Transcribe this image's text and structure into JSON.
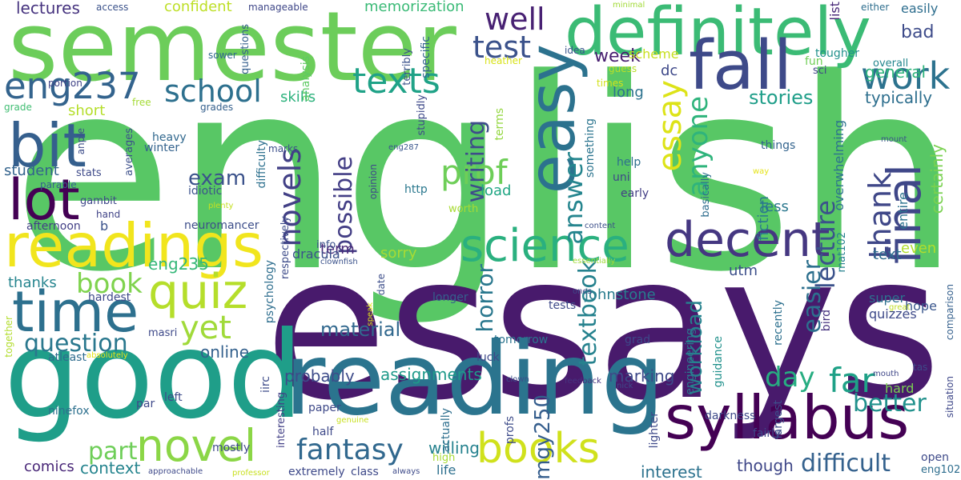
{
  "words": [
    {
      "text": "english",
      "color": "#58c765",
      "rot": false
    },
    {
      "text": "essays",
      "color": "#481a6c",
      "rot": false
    },
    {
      "text": "good",
      "color": "#1f9e89",
      "rot": false
    },
    {
      "text": "semester",
      "color": "#6ccd5a",
      "rot": false
    },
    {
      "text": "reading",
      "color": "#2b748e",
      "rot": false
    },
    {
      "text": "definitely",
      "color": "#3bbb75",
      "rot": false
    },
    {
      "text": "readings",
      "color": "#f1e51d",
      "rot": false
    },
    {
      "text": "syllabus",
      "color": "#440154",
      "rot": false
    },
    {
      "text": "easy",
      "color": "#2c728e",
      "rot": true
    },
    {
      "text": "fall",
      "color": "#3e4a89",
      "rot": false
    },
    {
      "text": "science",
      "color": "#2ab07f",
      "rot": false
    },
    {
      "text": "final",
      "color": "#3f4788",
      "rot": true
    },
    {
      "text": "decent",
      "color": "#453781",
      "rot": false
    },
    {
      "text": "novel",
      "color": "#8bd646",
      "rot": false
    },
    {
      "text": "time",
      "color": "#2d708e",
      "rot": false
    },
    {
      "text": "bit",
      "color": "#355f8d",
      "rot": false
    },
    {
      "text": "quiz",
      "color": "#b5de2b",
      "rot": false
    },
    {
      "text": "lot",
      "color": "#440154",
      "rot": false
    },
    {
      "text": "eng237",
      "color": "#33638d",
      "rot": false
    },
    {
      "text": "books",
      "color": "#d0e11c",
      "rot": false
    },
    {
      "text": "texts",
      "color": "#1fa287",
      "rot": false
    },
    {
      "text": "school",
      "color": "#2d708e",
      "rot": false
    },
    {
      "text": "work",
      "color": "#2c728e",
      "rot": false
    },
    {
      "text": "well",
      "color": "#482173",
      "rot": false
    },
    {
      "text": "test",
      "color": "#3b528b",
      "rot": false
    },
    {
      "text": "yet",
      "color": "#a0da39",
      "rot": false
    },
    {
      "text": "far",
      "color": "#1fa187",
      "rot": false
    },
    {
      "text": "prof",
      "color": "#6ece58",
      "rot": false
    },
    {
      "text": "essay",
      "color": "#dde318",
      "rot": true
    },
    {
      "text": "answer",
      "color": "#25858e",
      "rot": true
    },
    {
      "text": "thank",
      "color": "#3f4788",
      "rot": true
    },
    {
      "text": "fantasy",
      "color": "#31688e",
      "rot": false
    },
    {
      "text": "novels",
      "color": "#424086",
      "rot": true
    },
    {
      "text": "book",
      "color": "#7fd34e",
      "rot": false
    },
    {
      "text": "day",
      "color": "#27ad81",
      "rot": false
    },
    {
      "text": "anyone",
      "color": "#2fb47c",
      "rot": true
    },
    {
      "text": "difficult",
      "color": "#34618d",
      "rot": false
    },
    {
      "text": "better",
      "color": "#21918c",
      "rot": false
    },
    {
      "text": "question",
      "color": "#2a788e",
      "rot": false
    },
    {
      "text": "lecture",
      "color": "#3b528b",
      "rot": true
    },
    {
      "text": "writing",
      "color": "#3e4c8a",
      "rot": true
    },
    {
      "text": "mgy250",
      "color": "#355e8d",
      "rot": true
    },
    {
      "text": "easier",
      "color": "#2d708e",
      "rot": true
    },
    {
      "text": "textbook",
      "color": "#26828e",
      "rot": true
    },
    {
      "text": "possible",
      "color": "#433e85",
      "rot": true
    },
    {
      "text": "part",
      "color": "#6ece58",
      "rot": false
    },
    {
      "text": "exam",
      "color": "#3b528b",
      "rot": false
    },
    {
      "text": "material",
      "color": "#31688e",
      "rot": false
    },
    {
      "text": "stories",
      "color": "#1f9e89",
      "rot": false
    },
    {
      "text": "horror",
      "color": "#2a788e",
      "rot": true
    },
    {
      "text": "workload",
      "color": "#26828e",
      "rot": true
    },
    {
      "text": "week",
      "color": "#481f70",
      "rot": false
    },
    {
      "text": "bad",
      "color": "#3e4c8a",
      "rot": false
    },
    {
      "text": "general",
      "color": "#2fb47c",
      "rot": false
    },
    {
      "text": "typically",
      "color": "#2e6f8e",
      "rot": false
    },
    {
      "text": "lectures",
      "color": "#46337f",
      "rot": false
    },
    {
      "text": "confident",
      "color": "#bddf26",
      "rot": false
    },
    {
      "text": "memorization",
      "color": "#3aba76",
      "rot": false
    },
    {
      "text": "online",
      "color": "#34618d",
      "rot": false
    },
    {
      "text": "probably",
      "color": "#3e4c8a",
      "rot": false
    },
    {
      "text": "assignments",
      "color": "#1f9a8a",
      "rot": false
    },
    {
      "text": "marking",
      "color": "#3e4989",
      "rot": false
    },
    {
      "text": "interest",
      "color": "#2c728e",
      "rot": false
    },
    {
      "text": "though",
      "color": "#3f4788",
      "rot": false
    },
    {
      "text": "willing",
      "color": "#26828e",
      "rot": false
    },
    {
      "text": "context",
      "color": "#25848e",
      "rot": false
    },
    {
      "text": "comics",
      "color": "#482677",
      "rot": false
    },
    {
      "text": "eng235",
      "color": "#35b779",
      "rot": false
    },
    {
      "text": "thanks",
      "color": "#25848e",
      "rot": false
    },
    {
      "text": "skills",
      "color": "#2db27d",
      "rot": false
    },
    {
      "text": "short",
      "color": "#b5de2b",
      "rot": false
    },
    {
      "text": "student",
      "color": "#33638d",
      "rot": false
    },
    {
      "text": "term",
      "color": "#482878",
      "rot": false
    },
    {
      "text": "sorry",
      "color": "#a8db34",
      "rot": false
    },
    {
      "text": "load",
      "color": "#22a785",
      "rot": false
    },
    {
      "text": "long",
      "color": "#2c728e",
      "rot": false
    },
    {
      "text": "dc",
      "color": "#3e4989",
      "rot": false
    },
    {
      "text": "scheme",
      "color": "#c8e020",
      "rot": false
    },
    {
      "text": "fiction",
      "color": "#2a788e",
      "rot": true
    },
    {
      "text": "less",
      "color": "#2a778e",
      "rot": false
    },
    {
      "text": "even",
      "color": "#b2dd2d",
      "rot": false
    },
    {
      "text": "text",
      "color": "#2f6c8e",
      "rot": false
    },
    {
      "text": "utm",
      "color": "#3c4f8a",
      "rot": false
    },
    {
      "text": "johnstone",
      "color": "#287c8e",
      "rot": false
    },
    {
      "text": "dracula",
      "color": "#3b528b",
      "rot": false
    },
    {
      "text": "super",
      "color": "#2d708e",
      "rot": false
    },
    {
      "text": "quizzes",
      "color": "#3e4a89",
      "rot": false
    },
    {
      "text": "hope",
      "color": "#39568c",
      "rot": false
    },
    {
      "text": "hard",
      "color": "#7ad151",
      "rot": false
    },
    {
      "text": "certainly",
      "color": "#7ad151",
      "rot": true
    },
    {
      "text": "entire",
      "color": "#2c728e",
      "rot": true
    },
    {
      "text": "overwhelming",
      "color": "#2c738e",
      "rot": true
    },
    {
      "text": "access",
      "color": "#3b528b",
      "rot": false
    },
    {
      "text": "manageable",
      "color": "#3f4788",
      "rot": false
    },
    {
      "text": "either",
      "color": "#2e6e8e",
      "rot": false
    },
    {
      "text": "easily",
      "color": "#2e6e8e",
      "rot": false
    },
    {
      "text": "list",
      "color": "#482878",
      "rot": true
    },
    {
      "text": "minimal",
      "color": "#a2da37",
      "rot": false
    },
    {
      "text": "questions",
      "color": "#355f8d",
      "rot": true
    },
    {
      "text": "sower",
      "color": "#31688e",
      "rot": false
    },
    {
      "text": "portion",
      "color": "#414487",
      "rot": false
    },
    {
      "text": "analysis",
      "color": "#5ec962",
      "rot": true
    },
    {
      "text": "terribly",
      "color": "#3b528b",
      "rot": true
    },
    {
      "text": "specific",
      "color": "#33638d",
      "rot": true
    },
    {
      "text": "heather",
      "color": "#d8e219",
      "rot": false
    },
    {
      "text": "idea",
      "color": "#39558c",
      "rot": false
    },
    {
      "text": "guess",
      "color": "#bade28",
      "rot": false
    },
    {
      "text": "times",
      "color": "#d2e21b",
      "rot": false
    },
    {
      "text": "fun",
      "color": "#70cf57",
      "rot": false
    },
    {
      "text": "tougher",
      "color": "#21918c",
      "rot": false
    },
    {
      "text": "overall",
      "color": "#24878e",
      "rot": false
    },
    {
      "text": "sci",
      "color": "#414487",
      "rot": false
    },
    {
      "text": "grade",
      "color": "#40bd72",
      "rot": false
    },
    {
      "text": "free",
      "color": "#a5db36",
      "rot": false
    },
    {
      "text": "grades",
      "color": "#35608d",
      "rot": false
    },
    {
      "text": "stupidly",
      "color": "#3e4989",
      "rot": true
    },
    {
      "text": "terms",
      "color": "#94d741",
      "rot": true
    },
    {
      "text": "something",
      "color": "#2b748e",
      "rot": true
    },
    {
      "text": "things",
      "color": "#33638d",
      "rot": false
    },
    {
      "text": "mount",
      "color": "#3b528b",
      "rot": false
    },
    {
      "text": "averages",
      "color": "#3c4f8a",
      "rot": true
    },
    {
      "text": "heavy",
      "color": "#31688e",
      "rot": false
    },
    {
      "text": "winter",
      "color": "#33628d",
      "rot": false
    },
    {
      "text": "marks",
      "color": "#3c4f8a",
      "rot": false
    },
    {
      "text": "eng287",
      "color": "#39568c",
      "rot": false
    },
    {
      "text": "help",
      "color": "#2e6f8e",
      "rot": false
    },
    {
      "text": "uni",
      "color": "#3f4788",
      "rot": false
    },
    {
      "text": "early",
      "color": "#433e85",
      "rot": false
    },
    {
      "text": "way",
      "color": "#e5e419",
      "rot": false
    },
    {
      "text": "stats",
      "color": "#3e4a89",
      "rot": false
    },
    {
      "text": "anple",
      "color": "#3d4d8a",
      "rot": true
    },
    {
      "text": "parable",
      "color": "#35608d",
      "rot": false
    },
    {
      "text": "gambit",
      "color": "#3f4889",
      "rot": false
    },
    {
      "text": "hand",
      "color": "#414487",
      "rot": false
    },
    {
      "text": "idiotic",
      "color": "#3b528b",
      "rot": false
    },
    {
      "text": "difficulty",
      "color": "#2d708e",
      "rot": true
    },
    {
      "text": "http",
      "color": "#2a788e",
      "rot": false
    },
    {
      "text": "opinion",
      "color": "#3f4889",
      "rot": true
    },
    {
      "text": "plenty",
      "color": "#c5e021",
      "rot": false
    },
    {
      "text": "worth",
      "color": "#a8db34",
      "rot": false
    },
    {
      "text": "basically",
      "color": "#2e6d8e",
      "rot": true
    },
    {
      "text": "afternoon",
      "color": "#423f85",
      "rot": false
    },
    {
      "text": "b",
      "color": "#3b528b",
      "rot": false
    },
    {
      "text": "neuromancer",
      "color": "#3d4e8a",
      "rot": false
    },
    {
      "text": "content",
      "color": "#3c4f8a",
      "rot": false
    },
    {
      "text": "respectively",
      "color": "#3e4c8a",
      "rot": true
    },
    {
      "text": "info",
      "color": "#3b528b",
      "rot": false
    },
    {
      "text": "clownfish",
      "color": "#3b528b",
      "rot": false
    },
    {
      "text": "essentially",
      "color": "#a0da39",
      "rot": false
    },
    {
      "text": "mat102",
      "color": "#26828e",
      "rot": true
    },
    {
      "text": "psychology",
      "color": "#2e6e8e",
      "rot": true
    },
    {
      "text": "date",
      "color": "#3d4e8a",
      "rot": true
    },
    {
      "text": "hardest",
      "color": "#3e4989",
      "rot": false
    },
    {
      "text": "longer",
      "color": "#35608d",
      "rot": false
    },
    {
      "text": "speak",
      "color": "#e2e418",
      "rot": true
    },
    {
      "text": "tests",
      "color": "#3e4a89",
      "rot": false
    },
    {
      "text": "ones",
      "color": "#3f4788",
      "rot": false
    },
    {
      "text": "recently",
      "color": "#2d708e",
      "rot": true
    },
    {
      "text": "bird",
      "color": "#46337f",
      "rot": true
    },
    {
      "text": "great",
      "color": "#c0df25",
      "rot": false
    },
    {
      "text": "comparison",
      "color": "#35608d",
      "rot": true
    },
    {
      "text": "together",
      "color": "#b2dd2d",
      "rot": true
    },
    {
      "text": "masri",
      "color": "#3e4989",
      "rot": false
    },
    {
      "text": "tomorrow",
      "color": "#2b748e",
      "rot": false
    },
    {
      "text": "grad",
      "color": "#3e4989",
      "rot": false
    },
    {
      "text": "guidance",
      "color": "#21918c",
      "rot": true
    },
    {
      "text": "engineering",
      "color": "#2a788e",
      "rot": true
    },
    {
      "text": "luck",
      "color": "#3e4989",
      "rot": false
    },
    {
      "text": "tas",
      "color": "#3e4a89",
      "rot": false
    },
    {
      "text": "absolutely",
      "color": "#e5e419",
      "rot": false
    },
    {
      "text": "atleast",
      "color": "#2f6c8e",
      "rot": false
    },
    {
      "text": "iirc",
      "color": "#3e4c8a",
      "rot": true
    },
    {
      "text": "clown",
      "color": "#3c4f8a",
      "rot": false
    },
    {
      "text": "feedback",
      "color": "#46337f",
      "rot": false
    },
    {
      "text": "nick",
      "color": "#3e4a89",
      "rot": false
    },
    {
      "text": "mouth",
      "color": "#3f4788",
      "rot": false
    },
    {
      "text": "situation",
      "color": "#3f4889",
      "rot": true
    },
    {
      "text": "left",
      "color": "#3e4c8a",
      "rot": false
    },
    {
      "text": "ninefox",
      "color": "#2d708e",
      "rot": false
    },
    {
      "text": "par",
      "color": "#3e4989",
      "rot": false
    },
    {
      "text": "paper",
      "color": "#3e4989",
      "rot": false
    },
    {
      "text": "darkness",
      "color": "#3e4a89",
      "rot": false
    },
    {
      "text": "fairly",
      "color": "#3e4989",
      "rot": false
    },
    {
      "text": "largest",
      "color": "#3d4e8a",
      "rot": true
    },
    {
      "text": "interesting",
      "color": "#424086",
      "rot": true
    },
    {
      "text": "half",
      "color": "#3e4989",
      "rot": false
    },
    {
      "text": "actually",
      "color": "#2e6f8e",
      "rot": true
    },
    {
      "text": "profs",
      "color": "#3e4c8a",
      "rot": true
    },
    {
      "text": "lighter",
      "color": "#3e4989",
      "rot": true
    },
    {
      "text": "genuine",
      "color": "#c8e020",
      "rot": false
    },
    {
      "text": "mostly",
      "color": "#3e4a89",
      "rot": false
    },
    {
      "text": "open",
      "color": "#3e4a89",
      "rot": false
    },
    {
      "text": "high",
      "color": "#a8db34",
      "rot": false
    },
    {
      "text": "life",
      "color": "#2d708e",
      "rot": false
    },
    {
      "text": "eng102",
      "color": "#2e6e8e",
      "rot": false
    },
    {
      "text": "extremely",
      "color": "#3e4989",
      "rot": false
    },
    {
      "text": "class",
      "color": "#3e4989",
      "rot": false
    },
    {
      "text": "always",
      "color": "#3e4a89",
      "rot": false
    },
    {
      "text": "approachable",
      "color": "#3e4989",
      "rot": false
    },
    {
      "text": "professor",
      "color": "#c8e020",
      "rot": false
    }
  ]
}
